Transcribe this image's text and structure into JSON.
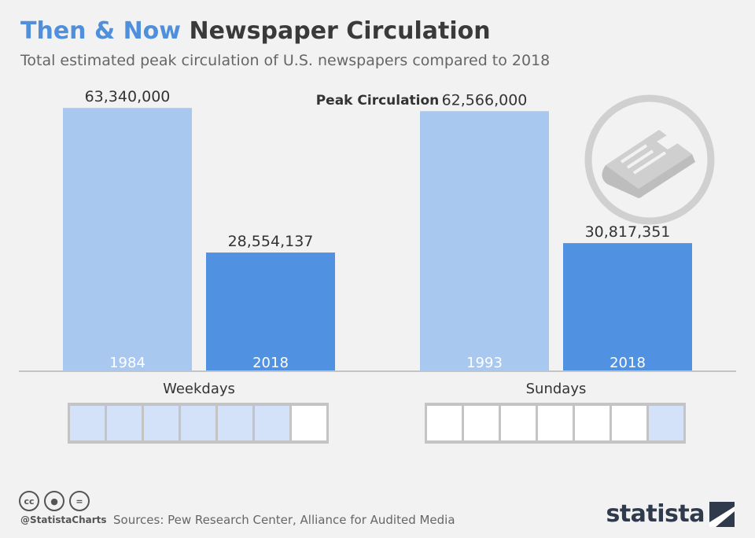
{
  "header": {
    "title_accent": "Then & Now",
    "title_rest": "Newspaper Circulation",
    "subtitle": "Total estimated peak circulation of U.S. newspapers compared to 2018"
  },
  "chart_data": {
    "type": "bar",
    "title": "Peak Circulation",
    "groups": [
      {
        "name": "Weekdays",
        "bars": [
          {
            "label": "1984",
            "value": 63340000,
            "value_label": "63,340,000",
            "color": "#a9c8f0"
          },
          {
            "label": "2018",
            "value": 28554137,
            "value_label": "28,554,137",
            "color": "#5191e2"
          }
        ]
      },
      {
        "name": "Sundays",
        "bars": [
          {
            "label": "1993",
            "value": 62566000,
            "value_label": "62,566,000",
            "color": "#a9c8f0"
          },
          {
            "label": "2018",
            "value": 30817351,
            "value_label": "30,817,351",
            "color": "#5191e2"
          }
        ]
      }
    ],
    "ylim": [
      0,
      70000000
    ],
    "grid": false,
    "legend": "none"
  },
  "day_strips": [
    {
      "group": "Weekdays",
      "filled": [
        true,
        true,
        true,
        true,
        true,
        true,
        false
      ]
    },
    {
      "group": "Sundays",
      "filled": [
        false,
        false,
        false,
        false,
        false,
        false,
        true
      ]
    }
  ],
  "footer": {
    "handle": "@StatistaCharts",
    "sources": "Sources: Pew Research Center, Alliance for Audited Media",
    "brand": "statista",
    "license_icons": [
      "cc-icon",
      "by-icon",
      "nd-icon"
    ]
  },
  "colors": {
    "accent": "#4f8fdc",
    "bar_then": "#a9c8f0",
    "bar_now": "#5191e2",
    "day_fill": "#d3e2f8"
  }
}
